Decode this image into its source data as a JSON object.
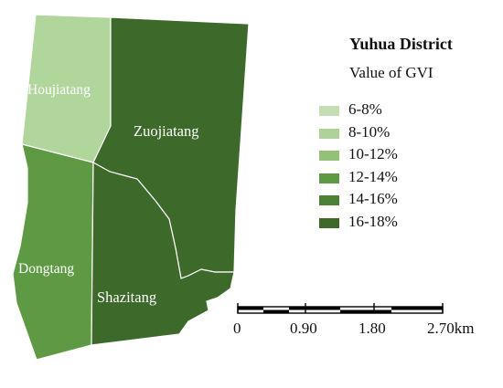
{
  "legend": {
    "title": "Yuhua District",
    "subtitle": "Value of GVI",
    "items": [
      {
        "label": "6-8%",
        "color": "#c3deb2"
      },
      {
        "label": "8-10%",
        "color": "#aed29a"
      },
      {
        "label": "10-12%",
        "color": "#93c178"
      },
      {
        "label": "12-14%",
        "color": "#5e9a43"
      },
      {
        "label": "14-16%",
        "color": "#4b8236"
      },
      {
        "label": "16-18%",
        "color": "#3d6a2a"
      }
    ]
  },
  "regions": {
    "houjiatang": {
      "name": "Houjiatang",
      "color": "#b1d69b"
    },
    "zuojiatang": {
      "name": "Zuojiatang",
      "color": "#3d6a2a"
    },
    "dongtang": {
      "name": "Dongtang",
      "color": "#5e9a43"
    },
    "shazitang": {
      "name": "Shazitang",
      "color": "#3d6a2a"
    }
  },
  "scale_bar": {
    "labels": [
      "0",
      "0.90",
      "1.80",
      "2.70km"
    ]
  }
}
